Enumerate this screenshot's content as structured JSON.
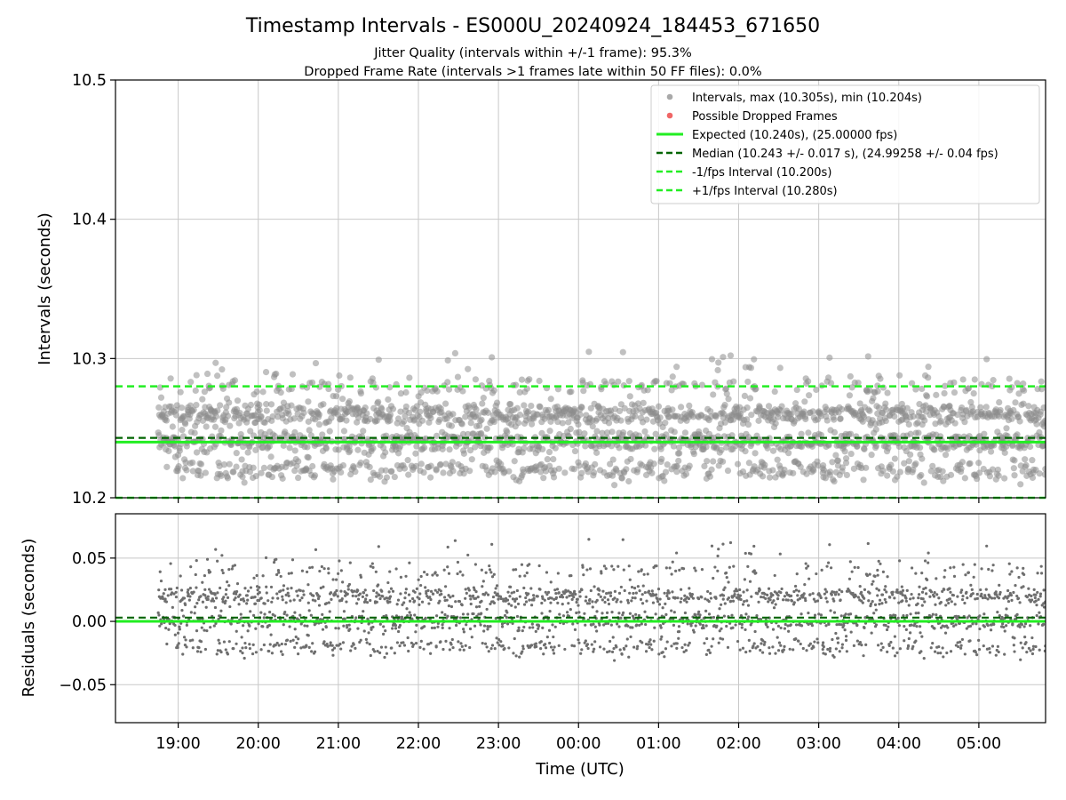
{
  "chart_data": {
    "type": "scatter",
    "title": "Timestamp Intervals - ES000U_20240924_184453_671650",
    "subtitles": [
      "Jitter Quality (intervals within +/-1 frame): 95.3%",
      "Dropped Frame Rate (intervals >1 frames late within 50 FF files): 0.0%"
    ],
    "xlabel": "Time (UTC)",
    "x_range": [
      "18:13",
      "05:50"
    ],
    "x_ticks": [
      "19:00",
      "20:00",
      "21:00",
      "22:00",
      "23:00",
      "00:00",
      "01:00",
      "02:00",
      "03:00",
      "04:00",
      "05:00"
    ],
    "x_data_start": "18:45",
    "x_data_end": "05:50",
    "grid": true,
    "legend_position": "top-right",
    "panels": [
      {
        "name": "intervals",
        "ylabel": "Intervals (seconds)",
        "ylim": [
          10.2,
          10.5
        ],
        "y_ticks": [
          "10.2",
          "10.3",
          "10.4",
          "10.5"
        ],
        "point_levels": [
          10.22,
          10.24,
          10.26,
          10.28
        ],
        "level_weights": [
          0.18,
          0.34,
          0.38,
          0.1
        ],
        "jitter": 0.004,
        "point_count": 2300,
        "max": 10.305,
        "min": 10.204,
        "lines": {
          "expected": 10.24,
          "median": 10.243,
          "lower": 10.2,
          "upper": 10.28
        }
      },
      {
        "name": "residuals",
        "ylabel": "Residuals (seconds)",
        "ylim": [
          -0.08,
          0.085
        ],
        "y_ticks": [
          "0.05",
          "0.00",
          "−0.05"
        ],
        "y_tick_values": [
          0.05,
          0.0,
          -0.05
        ],
        "lines": {
          "expected": 0.0,
          "median": 0.003
        }
      }
    ],
    "legend": [
      {
        "label": "Intervals, max (10.305s), min (10.204s)",
        "kind": "marker",
        "color": "#a9a9a9"
      },
      {
        "label": "Possible Dropped Frames",
        "kind": "marker",
        "color": "#f06666"
      },
      {
        "label": "Expected (10.240s), (25.00000 fps)",
        "kind": "solid",
        "color": "#22ee22"
      },
      {
        "label": "Median (10.243 +/- 0.017 s), (24.99258 +/- 0.04 fps)",
        "kind": "dashed",
        "color": "#006400"
      },
      {
        "label": "-1/fps Interval (10.200s)",
        "kind": "dashed",
        "color": "#22ee22"
      },
      {
        "label": "+1/fps Interval (10.280s)",
        "kind": "dashed",
        "color": "#22ee22"
      }
    ],
    "colors": {
      "points_top": "#8c8c8c",
      "points_bottom": "#6e6e6e",
      "expected": "#22ee22",
      "median": "#006400",
      "fps_bounds": "#22ee22",
      "grid": "#c8c8c8"
    }
  }
}
